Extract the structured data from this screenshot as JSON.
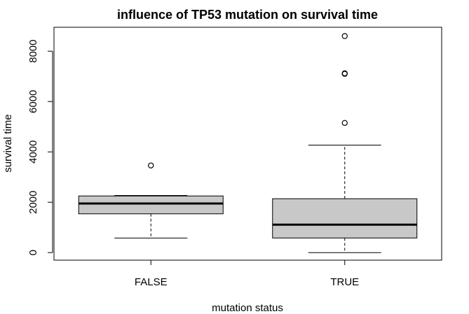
{
  "chart_data": {
    "type": "boxplot",
    "title": "influence of TP53 mutation on survival time",
    "xlabel": "mutation status",
    "ylabel": "survival time",
    "categories": [
      "FALSE",
      "TRUE"
    ],
    "y_ticks": [
      0,
      2000,
      4000,
      6000,
      8000
    ],
    "ylim": [
      -300,
      8950
    ],
    "box_fill": "#c8c8c8",
    "boxes": [
      {
        "name": "FALSE",
        "lower_whisker": 580,
        "q1": 1540,
        "median": 1950,
        "q3": 2250,
        "upper_whisker": 2270,
        "outliers": [
          3460
        ]
      },
      {
        "name": "TRUE",
        "lower_whisker": 0,
        "q1": 580,
        "median": 1110,
        "q3": 2140,
        "upper_whisker": 4270,
        "outliers": [
          5150,
          7100,
          7120,
          8600
        ]
      }
    ]
  }
}
